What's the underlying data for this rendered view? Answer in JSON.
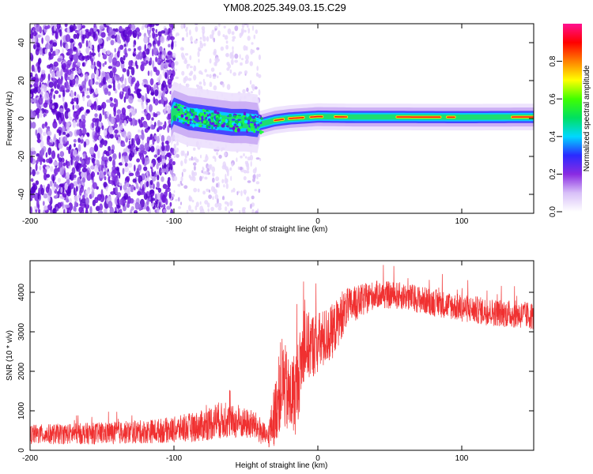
{
  "page_title": "YM08.2025.349.03.15.C29",
  "chart_data": [
    {
      "type": "heatmap",
      "name": "spectrogram",
      "xlabel": "Height of straight line (km)",
      "ylabel": "Frequency (Hz)",
      "xlim": [
        -200,
        150
      ],
      "ylim": [
        -50,
        50
      ],
      "x_ticks": [
        -200,
        -100,
        0,
        100
      ],
      "x_tick_labels": [
        "-200",
        "-100",
        "0",
        "100"
      ],
      "y_ticks": [
        -40,
        -20,
        0,
        20,
        40
      ],
      "y_tick_labels": [
        "-40",
        "-20",
        "0",
        "20",
        "40"
      ],
      "colorbar": {
        "label": "Normalized spectral amplitude",
        "range": [
          0,
          1
        ],
        "ticks": [
          0.0,
          0.2,
          0.4,
          0.6,
          0.8
        ],
        "tick_labels": [
          "0.0",
          "0.2",
          "0.4",
          "0.6",
          "0.8"
        ],
        "colors": [
          "#ffffff",
          "#d8c0f8",
          "#8a2be2",
          "#2a2aff",
          "#00d8ff",
          "#00e060",
          "#40ff00",
          "#ffff00",
          "#ff8000",
          "#ff0000",
          "#ff1090"
        ]
      },
      "noise_region_x": [
        -200,
        -100
      ],
      "faint_region_x": [
        -100,
        -40
      ],
      "signal_track": [
        {
          "x": -100,
          "f": 4
        },
        {
          "x": -90,
          "f": 1
        },
        {
          "x": -80,
          "f": 0
        },
        {
          "x": -70,
          "f": -1
        },
        {
          "x": -60,
          "f": -2
        },
        {
          "x": -50,
          "f": -2
        },
        {
          "x": -40,
          "f": -3
        },
        {
          "x": -30,
          "f": -1
        },
        {
          "x": -20,
          "f": 0
        },
        {
          "x": -10,
          "f": 0.5
        },
        {
          "x": 0,
          "f": 1
        },
        {
          "x": 25,
          "f": 0.8
        },
        {
          "x": 50,
          "f": 0.8
        },
        {
          "x": 100,
          "f": 0.7
        },
        {
          "x": 150,
          "f": 0.8
        }
      ]
    },
    {
      "type": "line",
      "name": "snr",
      "xlabel": "Height of straight line (km)",
      "ylabel": "SNR (10 * v/v)",
      "xlim": [
        -200,
        150
      ],
      "ylim": [
        0,
        4800
      ],
      "x_ticks": [
        -200,
        -100,
        0,
        100
      ],
      "x_tick_labels": [
        "-200",
        "-100",
        "0",
        "100"
      ],
      "y_ticks": [
        0,
        1000,
        2000,
        3000,
        4000
      ],
      "y_tick_labels": [
        "0",
        "1000",
        "2000",
        "3000",
        "4000"
      ],
      "color": "#f03030",
      "envelope": [
        {
          "x": -200,
          "mean": 400,
          "spread": 250
        },
        {
          "x": -150,
          "mean": 430,
          "spread": 280
        },
        {
          "x": -120,
          "mean": 470,
          "spread": 300
        },
        {
          "x": -100,
          "mean": 520,
          "spread": 330
        },
        {
          "x": -80,
          "mean": 620,
          "spread": 400
        },
        {
          "x": -70,
          "mean": 760,
          "spread": 480
        },
        {
          "x": -60,
          "mean": 720,
          "spread": 420
        },
        {
          "x": -45,
          "mean": 650,
          "spread": 380
        },
        {
          "x": -40,
          "mean": 500,
          "spread": 350
        },
        {
          "x": -35,
          "mean": 300,
          "spread": 250
        },
        {
          "x": -30,
          "mean": 900,
          "spread": 800
        },
        {
          "x": -25,
          "mean": 1800,
          "spread": 1200
        },
        {
          "x": -20,
          "mean": 1300,
          "spread": 1000
        },
        {
          "x": -15,
          "mean": 1500,
          "spread": 1100
        },
        {
          "x": -10,
          "mean": 2600,
          "spread": 900
        },
        {
          "x": 0,
          "mean": 2700,
          "spread": 800
        },
        {
          "x": 10,
          "mean": 3000,
          "spread": 700
        },
        {
          "x": 20,
          "mean": 3600,
          "spread": 500
        },
        {
          "x": 40,
          "mean": 3950,
          "spread": 350
        },
        {
          "x": 60,
          "mean": 3900,
          "spread": 350
        },
        {
          "x": 80,
          "mean": 3750,
          "spread": 350
        },
        {
          "x": 100,
          "mean": 3600,
          "spread": 350
        },
        {
          "x": 120,
          "mean": 3500,
          "spread": 350
        },
        {
          "x": 150,
          "mean": 3400,
          "spread": 350
        }
      ]
    }
  ]
}
